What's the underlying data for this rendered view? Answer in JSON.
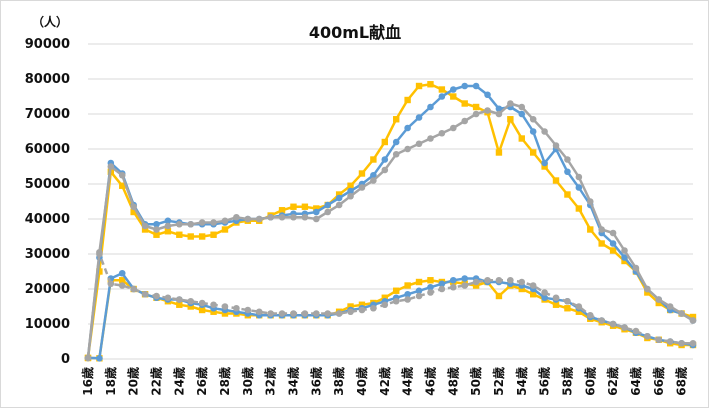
{
  "chart_data": {
    "type": "line",
    "title": "400mL献血",
    "y_unit": "（人）",
    "ylim": [
      0,
      90000
    ],
    "y_ticks": [
      0,
      10000,
      20000,
      30000,
      40000,
      50000,
      60000,
      70000,
      80000,
      90000
    ],
    "grid": true,
    "x": [
      16,
      17,
      18,
      19,
      20,
      21,
      22,
      23,
      24,
      25,
      26,
      27,
      28,
      29,
      30,
      31,
      32,
      33,
      34,
      35,
      36,
      37,
      38,
      39,
      40,
      41,
      42,
      43,
      44,
      45,
      46,
      47,
      48,
      49,
      50,
      51,
      52,
      53,
      54,
      55,
      56,
      57,
      58,
      59,
      60,
      61,
      62,
      63,
      64,
      65,
      66,
      67,
      68,
      69
    ],
    "x_tick_labels": [
      "16歳",
      "18歳",
      "20歳",
      "22歳",
      "24歳",
      "26歳",
      "28歳",
      "30歳",
      "32歳",
      "34歳",
      "36歳",
      "38歳",
      "40歳",
      "42歳",
      "44歳",
      "46歳",
      "48歳",
      "50歳",
      "52歳",
      "54歳",
      "56歳",
      "58歳",
      "60歳",
      "62歳",
      "64歳",
      "66歳",
      "68歳"
    ],
    "series": [
      {
        "color": "#FFC000",
        "marker": "square",
        "dashed": false,
        "values": [
          300,
          25000,
          53500,
          49500,
          42000,
          37000,
          35500,
          36500,
          35500,
          35000,
          35000,
          35500,
          37000,
          39000,
          39500,
          39500,
          41000,
          42500,
          43500,
          43500,
          43000,
          44000,
          47000,
          49500,
          53000,
          57000,
          62000,
          68500,
          74000,
          78000,
          78500,
          77000,
          75000,
          73000,
          72000,
          70500,
          59000,
          68500,
          63000,
          59000,
          55000,
          51000,
          47000,
          43000,
          37000,
          33000,
          31000,
          28000,
          25000,
          19000,
          16000,
          14000,
          13000,
          12000
        ]
      },
      {
        "color": "#5B9BD5",
        "marker": "circle",
        "dashed": false,
        "values": [
          300,
          29000,
          56000,
          53000,
          44000,
          38500,
          38500,
          39500,
          39000,
          38500,
          38500,
          38500,
          39000,
          39500,
          40000,
          40000,
          40500,
          41000,
          41500,
          41500,
          42000,
          44000,
          46000,
          48000,
          50000,
          52500,
          57000,
          62000,
          66000,
          69000,
          72000,
          75000,
          77000,
          78000,
          78000,
          75500,
          71500,
          72000,
          70000,
          65000,
          56000,
          60000,
          53500,
          49000,
          44000,
          36000,
          33000,
          29000,
          25000,
          20000,
          17000,
          14000,
          13000,
          11000
        ]
      },
      {
        "color": "#A5A5A5",
        "marker": "circle",
        "dashed": false,
        "values": [
          300,
          30500,
          55000,
          52500,
          43500,
          38000,
          37000,
          38000,
          38500,
          38500,
          39000,
          39000,
          39500,
          40500,
          40000,
          40000,
          40500,
          40500,
          40500,
          40500,
          40000,
          42000,
          44000,
          46500,
          49000,
          51000,
          54000,
          58500,
          60000,
          61500,
          63000,
          64500,
          66000,
          68000,
          70000,
          71000,
          70000,
          73000,
          72000,
          68500,
          65000,
          61000,
          57000,
          52000,
          45000,
          37000,
          36000,
          31000,
          26000,
          20000,
          17000,
          15000,
          13000,
          11000
        ]
      },
      {
        "color": "#FFC000",
        "marker": "square",
        "dashed": false,
        "values": [
          300,
          200,
          22500,
          22500,
          20000,
          18500,
          17500,
          16500,
          15500,
          15000,
          14000,
          13500,
          13000,
          13000,
          12500,
          12500,
          12500,
          12500,
          12500,
          12500,
          12500,
          12500,
          13500,
          15000,
          15500,
          16000,
          17500,
          19500,
          21000,
          22000,
          22500,
          22000,
          22000,
          21500,
          21000,
          22000,
          18000,
          21000,
          20000,
          18500,
          17000,
          15500,
          14500,
          13500,
          11500,
          10500,
          9500,
          8500,
          7500,
          6000,
          5500,
          4500,
          4000,
          4000
        ]
      },
      {
        "color": "#5B9BD5",
        "marker": "circle",
        "dashed": false,
        "values": [
          300,
          200,
          23000,
          24500,
          20000,
          18500,
          17500,
          17000,
          17000,
          16000,
          15500,
          14500,
          14000,
          13500,
          13000,
          12500,
          12500,
          12500,
          12500,
          12500,
          12500,
          12500,
          13000,
          14000,
          14500,
          15500,
          16500,
          17500,
          18500,
          19500,
          20500,
          21500,
          22500,
          23000,
          23000,
          22000,
          22000,
          21500,
          21000,
          20000,
          17500,
          17000,
          16500,
          14500,
          12000,
          11000,
          10000,
          9000,
          7500,
          6500,
          5500,
          5000,
          4500,
          4000
        ]
      },
      {
        "color": "#A5A5A5",
        "marker": "circle",
        "dashed": true,
        "values": [
          300,
          30000,
          21500,
          21000,
          20000,
          18500,
          18000,
          17500,
          17000,
          16500,
          16000,
          15500,
          15000,
          14500,
          14000,
          13500,
          13000,
          13000,
          13000,
          13000,
          13000,
          13000,
          13000,
          13500,
          14000,
          14500,
          15500,
          16500,
          17000,
          18000,
          19000,
          20000,
          20500,
          21000,
          22000,
          22500,
          22500,
          22500,
          22000,
          21000,
          19000,
          17500,
          16500,
          15000,
          12500,
          11000,
          10000,
          9000,
          8000,
          6500,
          5500,
          5000,
          4500,
          4500
        ]
      }
    ]
  }
}
